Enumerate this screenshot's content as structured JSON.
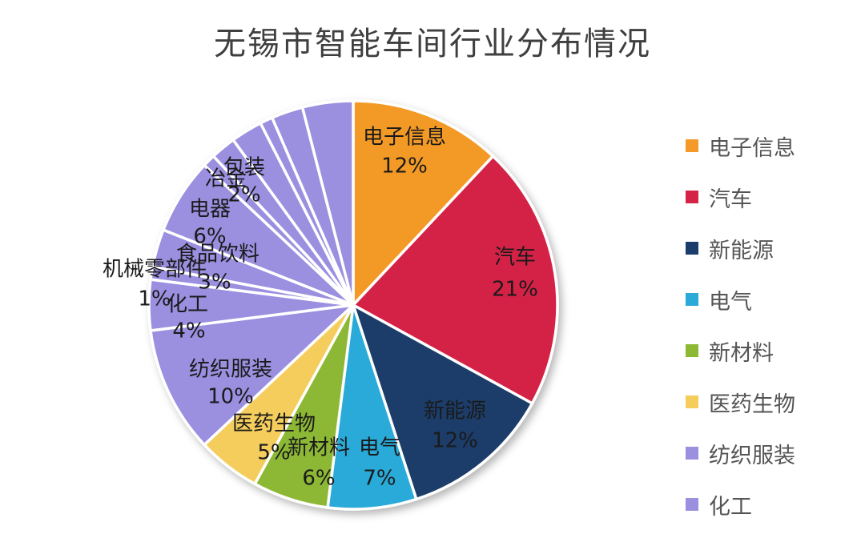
{
  "chart_data": {
    "type": "pie",
    "title": "无锡市智能车间行业分布情况",
    "legend_position": "right",
    "slices": [
      {
        "name": "电子信息",
        "value": 12,
        "label": "12%",
        "color": "#F39A28"
      },
      {
        "name": "汽车",
        "value": 21,
        "label": "21%",
        "color": "#D42346"
      },
      {
        "name": "新能源",
        "value": 12,
        "label": "12%",
        "color": "#1B3D6B"
      },
      {
        "name": "电气",
        "value": 7,
        "label": "7%",
        "color": "#2BAAD8"
      },
      {
        "name": "新材料",
        "value": 6,
        "label": "6%",
        "color": "#8DB834"
      },
      {
        "name": "医药生物",
        "value": 5,
        "label": "5%",
        "color": "#F5CD5B"
      },
      {
        "name": "纺织服装",
        "value": 10,
        "label": "10%",
        "color": "#9B8FE0"
      },
      {
        "name": "化工",
        "value": 4,
        "label": "4%",
        "color": "#9B8FE0"
      },
      {
        "name": "机械零部件",
        "value": 1,
        "label": "1%",
        "color": "#9B8FE0"
      },
      {
        "name": "食品饮料",
        "value": 3,
        "label": "3%",
        "color": "#9B8FE0"
      },
      {
        "name": "电器",
        "value": 6,
        "label": "6%",
        "color": "#9B8FE0"
      },
      {
        "name": "冶金",
        "value": 1,
        "label": "",
        "color": "#9B8FE0"
      },
      {
        "name": "包装",
        "value": 2,
        "label": "2%",
        "color": "#9B8FE0"
      },
      {
        "name": "",
        "value": 2.5,
        "label": "",
        "color": "#9B8FE0"
      },
      {
        "name": "",
        "value": 1,
        "label": "",
        "color": "#9B8FE0"
      },
      {
        "name": "",
        "value": 2.5,
        "label": "",
        "color": "#9B8FE0"
      },
      {
        "name": "",
        "value": 4,
        "label": "",
        "color": "#9B8FE0"
      }
    ],
    "legend": [
      {
        "label": "电子信息",
        "color": "#F39A28"
      },
      {
        "label": "汽车",
        "color": "#D42346"
      },
      {
        "label": "新能源",
        "color": "#1B3D6B"
      },
      {
        "label": "电气",
        "color": "#2BAAD8"
      },
      {
        "label": "新材料",
        "color": "#8DB834"
      },
      {
        "label": "医药生物",
        "color": "#F5CD5B"
      },
      {
        "label": "纺织服装",
        "color": "#9B8FE0"
      },
      {
        "label": "化工",
        "color": "#9B8FE0"
      }
    ]
  }
}
